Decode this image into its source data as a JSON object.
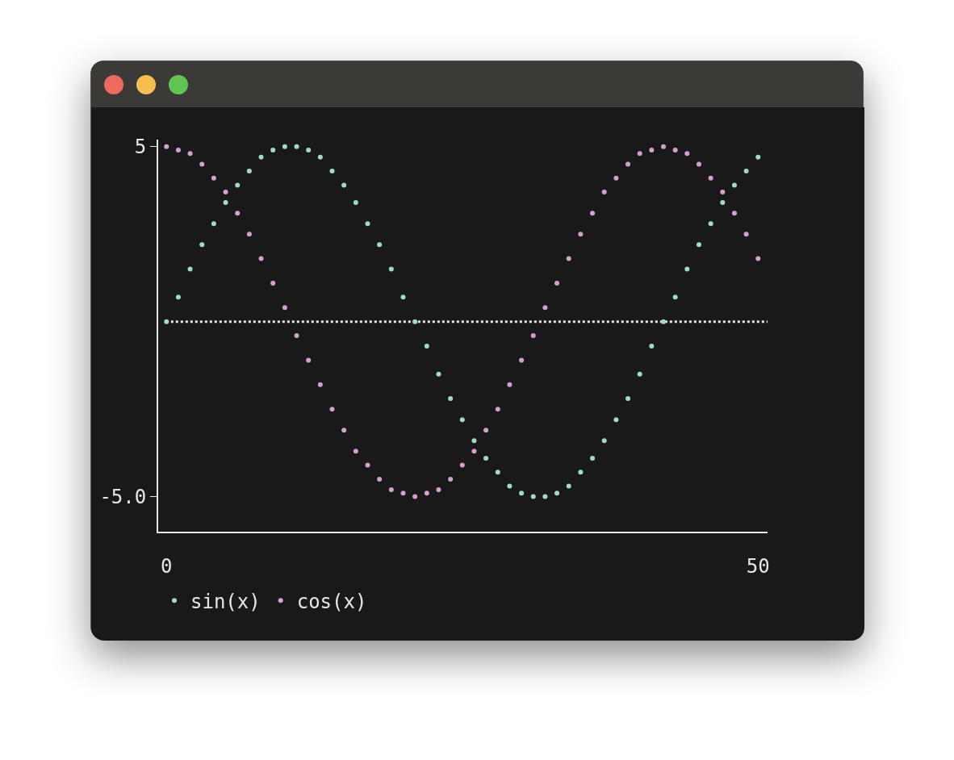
{
  "chart_data": {
    "type": "scatter",
    "x": [
      0,
      1,
      2,
      3,
      4,
      5,
      6,
      7,
      8,
      9,
      10,
      11,
      12,
      13,
      14,
      15,
      16,
      17,
      18,
      19,
      20,
      21,
      22,
      23,
      24,
      25,
      26,
      27,
      28,
      29,
      30,
      31,
      32,
      33,
      34,
      35,
      36,
      37,
      38,
      39,
      40,
      41,
      42,
      43,
      44,
      45,
      46,
      47,
      48,
      49,
      50
    ],
    "series": [
      {
        "name": "sin(x)",
        "color": "#9fdcc8",
        "values": [
          0,
          0.7,
          1.5,
          2.2,
          2.8,
          3.4,
          3.9,
          4.3,
          4.7,
          4.9,
          5,
          5,
          4.9,
          4.7,
          4.3,
          3.9,
          3.4,
          2.8,
          2.2,
          1.5,
          0.7,
          0,
          -0.7,
          -1.5,
          -2.2,
          -2.8,
          -3.4,
          -3.9,
          -4.3,
          -4.7,
          -4.9,
          -5,
          -5,
          -4.9,
          -4.7,
          -4.3,
          -3.9,
          -3.4,
          -2.8,
          -2.2,
          -1.5,
          -0.7,
          0,
          0.7,
          1.5,
          2.2,
          2.8,
          3.4,
          3.9,
          4.3,
          4.7
        ]
      },
      {
        "name": "cos(x)",
        "color": "#d4a0d0",
        "values": [
          5,
          4.9,
          4.8,
          4.5,
          4.1,
          3.7,
          3.1,
          2.5,
          1.8,
          1.1,
          0.4,
          -0.4,
          -1.1,
          -1.8,
          -2.5,
          -3.1,
          -3.7,
          -4.1,
          -4.5,
          -4.8,
          -4.9,
          -5,
          -4.9,
          -4.8,
          -4.5,
          -4.1,
          -3.7,
          -3.1,
          -2.5,
          -1.8,
          -1.1,
          -0.4,
          0.4,
          1.1,
          1.8,
          2.5,
          3.1,
          3.7,
          4.1,
          4.5,
          4.8,
          4.9,
          5,
          4.9,
          4.8,
          4.5,
          4.1,
          3.7,
          3.1,
          2.5,
          1.8
        ]
      }
    ],
    "xlim": [
      -0.7,
      50.8
    ],
    "xticks": [
      0,
      50
    ],
    "ylim": [
      -6,
      5.2
    ],
    "yticks": [
      5,
      {
        "value": -5,
        "label": "-5.0"
      }
    ],
    "ref_lines": [
      {
        "axis": "y",
        "value": 0,
        "color": "#e8e8e8",
        "line_style": "dotted"
      }
    ],
    "legend": "bottom left",
    "marker": "circle"
  }
}
